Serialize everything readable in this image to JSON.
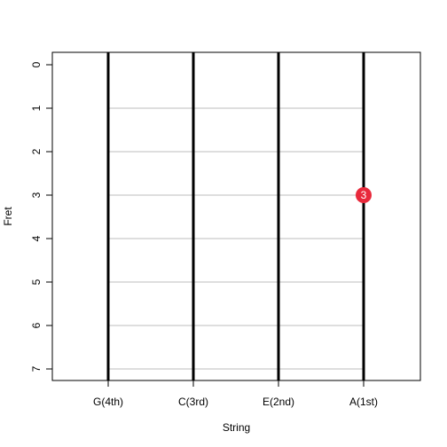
{
  "chart_data": {
    "type": "scatter",
    "title": "",
    "xlabel": "String",
    "ylabel": "Fret",
    "strings": [
      "G(4th)",
      "C(3rd)",
      "E(2nd)",
      "A(1st)"
    ],
    "frets": [
      0,
      1,
      2,
      3,
      4,
      5,
      6,
      7
    ],
    "ylim": [
      0,
      7
    ],
    "y_reversed": true,
    "grid": true,
    "legend": "none",
    "points": [
      {
        "string": "A(1st)",
        "fret": 3,
        "label": "3"
      }
    ],
    "colors": {
      "string_line": "#000000",
      "fret_line": "#bdbdbd",
      "marker": "#e8293b",
      "marker_text": "#ffffff"
    }
  }
}
